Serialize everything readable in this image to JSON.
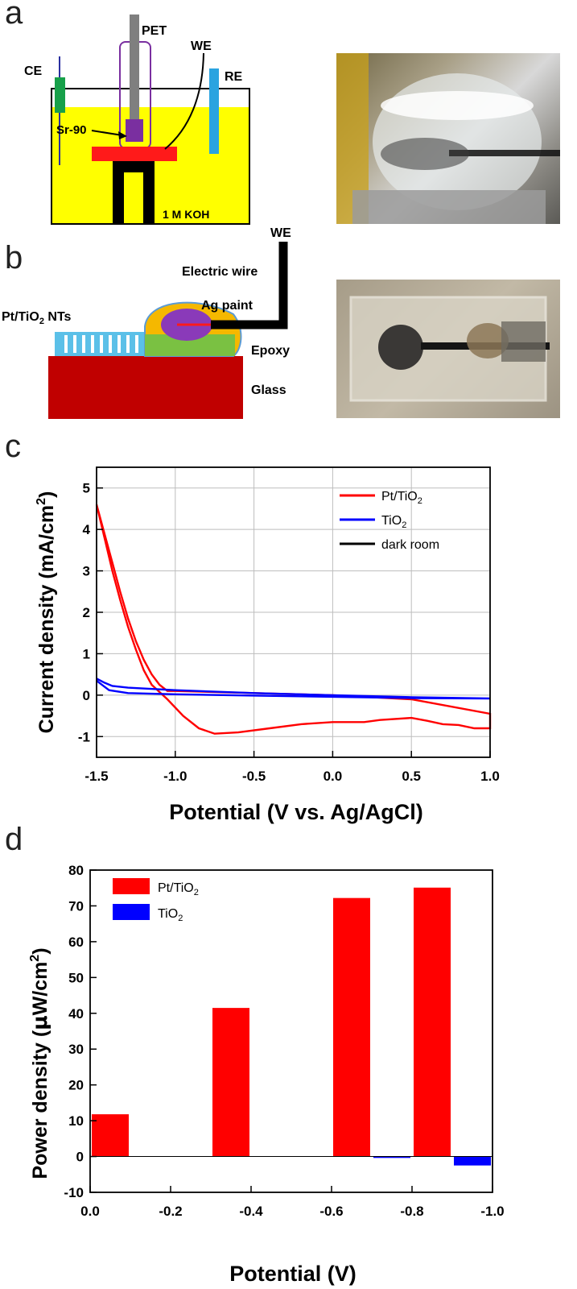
{
  "panels": {
    "a": "a",
    "b": "b",
    "c": "c",
    "d": "d"
  },
  "diagram_a": {
    "labels": {
      "pet": "PET",
      "we": "WE",
      "ce": "CE",
      "re": "RE",
      "source": "Sr-90",
      "electrolyte": "1 M KOH"
    },
    "colors": {
      "electrolyte": "#ffff00",
      "ce": "#17a04a",
      "re": "#2aa3e0",
      "holder": "#7a2fa0",
      "stage": "#ff1a1a"
    }
  },
  "diagram_b": {
    "labels": {
      "we": "WE",
      "wire": "Electric wire",
      "paint": "Ag paint",
      "nts_prefix": "Pt/TiO",
      "nts_sub": "2",
      "nts_suffix": " NTs",
      "epoxy": "Epoxy",
      "glass": "Glass"
    },
    "colors": {
      "glass": "#c00000",
      "epoxy": "#7ac142",
      "nts": "#5bc0e8",
      "paint_outer": "#f5b800",
      "paint_inner": "#8a3ab9"
    }
  },
  "photos": {
    "a": {
      "icon": "beaker-photo"
    },
    "b": {
      "icon": "electrode-photo"
    }
  },
  "chart_data": [
    {
      "type": "line",
      "xlabel": "Potential (V vs. Ag/AgCl)",
      "ylabel_main": "Current density (mA/cm",
      "ylabel_sup": "2",
      "ylabel_end": ")",
      "xlim": [
        -1.5,
        1.0
      ],
      "ylim": [
        -1.5,
        5.5
      ],
      "xticks": [
        "-1.5",
        "-1.0",
        "-0.5",
        "0.0",
        "0.5",
        "1.0"
      ],
      "xtick_values": [
        -1.5,
        -1.0,
        -0.5,
        0.0,
        0.5,
        1.0
      ],
      "yticks": [
        "-1",
        "0",
        "1",
        "2",
        "3",
        "4",
        "5"
      ],
      "ytick_values": [
        -1,
        0,
        1,
        2,
        3,
        4,
        5
      ],
      "grid": true,
      "legend_position": "top-right",
      "series": [
        {
          "name": "Pt/TiO",
          "name_sub": "2",
          "color": "#ff0000",
          "points": [
            [
              -1.5,
              4.6
            ],
            [
              -1.45,
              3.9
            ],
            [
              -1.4,
              3.2
            ],
            [
              -1.35,
              2.5
            ],
            [
              -1.3,
              1.85
            ],
            [
              -1.25,
              1.3
            ],
            [
              -1.2,
              0.85
            ],
            [
              -1.15,
              0.5
            ],
            [
              -1.1,
              0.25
            ],
            [
              -1.05,
              0.1
            ],
            [
              -1.0,
              0.1
            ],
            [
              -0.5,
              0.05
            ],
            [
              0.0,
              0.0
            ],
            [
              0.5,
              -0.1
            ],
            [
              1.0,
              -0.45
            ],
            [
              1.0,
              -0.8
            ],
            [
              0.9,
              -0.8
            ],
            [
              0.8,
              -0.72
            ],
            [
              0.7,
              -0.7
            ],
            [
              0.6,
              -0.62
            ],
            [
              0.5,
              -0.55
            ],
            [
              0.3,
              -0.6
            ],
            [
              0.2,
              -0.65
            ],
            [
              0.0,
              -0.65
            ],
            [
              -0.2,
              -0.7
            ],
            [
              -0.4,
              -0.8
            ],
            [
              -0.6,
              -0.9
            ],
            [
              -0.75,
              -0.93
            ],
            [
              -0.85,
              -0.8
            ],
            [
              -0.95,
              -0.5
            ],
            [
              -1.05,
              -0.1
            ],
            [
              -1.15,
              0.25
            ],
            [
              -1.2,
              0.6
            ],
            [
              -1.25,
              1.1
            ],
            [
              -1.3,
              1.65
            ],
            [
              -1.35,
              2.3
            ],
            [
              -1.4,
              3.0
            ],
            [
              -1.45,
              3.8
            ],
            [
              -1.5,
              4.6
            ]
          ]
        },
        {
          "name": "TiO",
          "name_sub": "2",
          "color": "#0000ff",
          "points": [
            [
              -1.5,
              0.4
            ],
            [
              -1.45,
              0.3
            ],
            [
              -1.4,
              0.22
            ],
            [
              -1.3,
              0.18
            ],
            [
              -1.0,
              0.12
            ],
            [
              -0.5,
              0.05
            ],
            [
              0.0,
              0.0
            ],
            [
              0.5,
              -0.05
            ],
            [
              1.0,
              -0.08
            ],
            [
              0.5,
              -0.07
            ],
            [
              0.0,
              -0.04
            ],
            [
              -0.5,
              -0.01
            ],
            [
              -1.0,
              0.02
            ],
            [
              -1.3,
              0.05
            ],
            [
              -1.42,
              0.12
            ],
            [
              -1.5,
              0.35
            ]
          ]
        },
        {
          "name": "dark room",
          "name_sub": "",
          "color": "#000000",
          "points": []
        }
      ]
    },
    {
      "type": "bar",
      "xlabel": "Potential (V)",
      "ylabel_main": "Power density (",
      "ylabel_mu": "μ",
      "ylabel_unit": "W/cm",
      "ylabel_sup": "2",
      "ylabel_end": ")",
      "xlim": [
        0.0,
        -1.0
      ],
      "ylim": [
        -10,
        80
      ],
      "xticks": [
        "0.0",
        "-0.2",
        "-0.4",
        "-0.6",
        "-0.8",
        "-1.0"
      ],
      "xtick_values": [
        0.0,
        -0.2,
        -0.4,
        -0.6,
        -0.8,
        -1.0
      ],
      "yticks": [
        "-10",
        "0",
        "10",
        "20",
        "30",
        "40",
        "50",
        "60",
        "70",
        "80"
      ],
      "ytick_values": [
        -10,
        0,
        10,
        20,
        30,
        40,
        50,
        60,
        70,
        80
      ],
      "grid": false,
      "legend_position": "top-left",
      "series": [
        {
          "name": "Pt/TiO",
          "name_sub": "2",
          "color": "#ff0000",
          "bars": [
            {
              "x": -0.05,
              "value": 11.8
            },
            {
              "x": -0.35,
              "value": 41.5
            },
            {
              "x": -0.65,
              "value": 72.2
            },
            {
              "x": -0.85,
              "value": 75.1
            }
          ]
        },
        {
          "name": "TiO",
          "name_sub": "2",
          "color": "#0000ff",
          "bars": [
            {
              "x": -0.75,
              "value": -0.4
            },
            {
              "x": -0.95,
              "value": -2.5
            }
          ]
        }
      ]
    }
  ]
}
